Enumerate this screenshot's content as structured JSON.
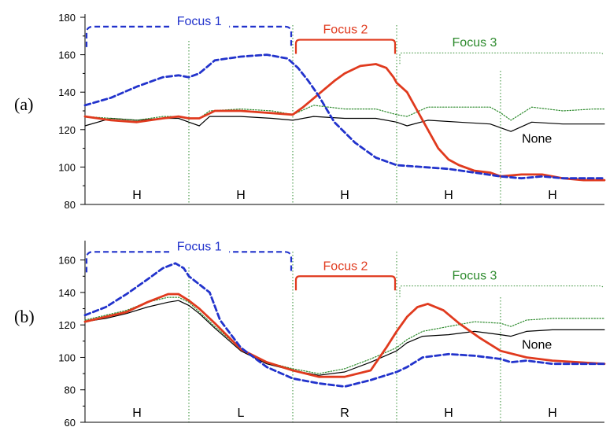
{
  "colors": {
    "focus1": "#2233cc",
    "focus2": "#e03a1e",
    "focus3": "#2e8b2e",
    "none": "#000000",
    "axis": "#000000"
  },
  "chart_data": [
    {
      "type": "line",
      "panel_label": "(a)",
      "ylim": [
        80,
        180
      ],
      "yticks": [
        80,
        100,
        120,
        140,
        160,
        180
      ],
      "xlim": [
        0,
        5
      ],
      "segment_labels": [
        "H",
        "H",
        "H",
        "H",
        "H"
      ],
      "focus_labels": [
        "Focus 1",
        "Focus 2",
        "Focus 3"
      ],
      "focus_values": [
        175,
        168,
        161
      ],
      "none_label": "None",
      "series": [
        {
          "key": "none",
          "style": "solid-thin",
          "x": [
            0,
            0.25,
            0.5,
            0.75,
            0.9,
            1.0,
            1.1,
            1.2,
            1.5,
            1.8,
            2.0,
            2.2,
            2.5,
            2.8,
            3.0,
            3.1,
            3.3,
            3.6,
            3.9,
            4.0,
            4.1,
            4.3,
            4.6,
            4.9,
            5.0
          ],
          "values": [
            122,
            126,
            125,
            126,
            126,
            124,
            122,
            127,
            127,
            126,
            125,
            127,
            126,
            126,
            124,
            122,
            125,
            124,
            123,
            121,
            119,
            124,
            123,
            123,
            123
          ]
        },
        {
          "key": "focus3",
          "style": "dotted",
          "x": [
            0,
            0.25,
            0.5,
            0.75,
            0.9,
            1.0,
            1.1,
            1.2,
            1.5,
            1.8,
            2.0,
            2.2,
            2.5,
            2.8,
            3.0,
            3.1,
            3.3,
            3.6,
            3.9,
            4.0,
            4.1,
            4.3,
            4.6,
            4.9,
            5.0
          ],
          "values": [
            127,
            126,
            125,
            127,
            127,
            126,
            126,
            130,
            131,
            130,
            128,
            133,
            131,
            131,
            128,
            127,
            132,
            132,
            132,
            129,
            125,
            132,
            130,
            131,
            131
          ]
        },
        {
          "key": "focus2",
          "style": "solid-thick",
          "x": [
            0,
            0.25,
            0.5,
            0.75,
            0.9,
            1.0,
            1.1,
            1.25,
            1.5,
            1.75,
            2.0,
            2.1,
            2.25,
            2.4,
            2.5,
            2.65,
            2.8,
            2.9,
            2.97,
            3.0,
            3.1,
            3.2,
            3.3,
            3.4,
            3.5,
            3.6,
            3.75,
            3.9,
            4.0,
            4.2,
            4.4,
            4.6,
            4.8,
            5.0
          ],
          "values": [
            127,
            125,
            124,
            126,
            127,
            126,
            126,
            130,
            130,
            129,
            128,
            132,
            139,
            146,
            150,
            154,
            155,
            153,
            148,
            145,
            140,
            130,
            120,
            110,
            104,
            101,
            98,
            97,
            95,
            96,
            96,
            94,
            93,
            93
          ]
        },
        {
          "key": "focus1",
          "style": "dashed",
          "x": [
            0,
            0.25,
            0.5,
            0.75,
            0.9,
            1.0,
            1.1,
            1.25,
            1.5,
            1.75,
            1.95,
            2.05,
            2.15,
            2.25,
            2.4,
            2.6,
            2.8,
            3.0,
            3.25,
            3.5,
            3.75,
            4.0,
            4.2,
            4.4,
            4.6,
            4.8,
            5.0
          ],
          "values": [
            133,
            137,
            143,
            148,
            149,
            148,
            150,
            157,
            159,
            160,
            158,
            153,
            146,
            138,
            124,
            113,
            105,
            101,
            100,
            99,
            97,
            95,
            94,
            95,
            94,
            94,
            94
          ]
        }
      ]
    },
    {
      "type": "line",
      "panel_label": "(b)",
      "ylim": [
        60,
        170
      ],
      "yticks": [
        60,
        80,
        100,
        120,
        140,
        160
      ],
      "xlim": [
        0,
        5
      ],
      "segment_labels": [
        "H",
        "L",
        "R",
        "H",
        "H"
      ],
      "focus_labels": [
        "Focus 1",
        "Focus 2",
        "Focus 3"
      ],
      "focus_values": [
        165,
        150,
        144
      ],
      "none_label": "None",
      "series": [
        {
          "key": "none",
          "style": "solid-thin",
          "x": [
            0,
            0.2,
            0.4,
            0.6,
            0.8,
            0.9,
            1.0,
            1.1,
            1.25,
            1.5,
            1.75,
            2.0,
            2.25,
            2.5,
            2.75,
            3.0,
            3.1,
            3.25,
            3.5,
            3.75,
            4.0,
            4.1,
            4.25,
            4.5,
            4.75,
            5.0
          ],
          "values": [
            122,
            124,
            127,
            131,
            134,
            135,
            132,
            127,
            118,
            104,
            96,
            92,
            89,
            91,
            97,
            104,
            109,
            113,
            114,
            116,
            114,
            113,
            116,
            117,
            117,
            117
          ]
        },
        {
          "key": "focus3",
          "style": "dotted",
          "x": [
            0,
            0.2,
            0.4,
            0.6,
            0.8,
            0.9,
            1.0,
            1.1,
            1.25,
            1.5,
            1.75,
            2.0,
            2.25,
            2.5,
            2.75,
            3.0,
            3.1,
            3.25,
            3.5,
            3.75,
            4.0,
            4.1,
            4.25,
            4.5,
            4.75,
            5.0
          ],
          "values": [
            123,
            126,
            129,
            134,
            137,
            137,
            134,
            128,
            119,
            105,
            97,
            93,
            90,
            93,
            99,
            106,
            111,
            116,
            119,
            122,
            121,
            119,
            123,
            124,
            124,
            124
          ]
        },
        {
          "key": "focus2",
          "style": "solid-thick",
          "x": [
            0,
            0.2,
            0.4,
            0.6,
            0.8,
            0.9,
            1.0,
            1.1,
            1.25,
            1.5,
            1.75,
            2.0,
            2.25,
            2.5,
            2.75,
            2.9,
            3.0,
            3.1,
            3.2,
            3.3,
            3.45,
            3.6,
            3.8,
            4.0,
            4.25,
            4.5,
            4.75,
            5.0
          ],
          "values": [
            122,
            125,
            128,
            134,
            139,
            139,
            135,
            130,
            121,
            105,
            97,
            92,
            88,
            88,
            92,
            106,
            116,
            125,
            131,
            133,
            129,
            121,
            112,
            104,
            100,
            98,
            97,
            96
          ]
        },
        {
          "key": "focus1",
          "style": "dashed",
          "x": [
            0,
            0.2,
            0.4,
            0.6,
            0.75,
            0.87,
            0.95,
            1.0,
            1.1,
            1.2,
            1.3,
            1.5,
            1.75,
            2.0,
            2.25,
            2.5,
            2.75,
            3.0,
            3.1,
            3.25,
            3.5,
            3.75,
            4.0,
            4.1,
            4.25,
            4.5,
            4.75,
            5.0
          ],
          "values": [
            126,
            131,
            139,
            148,
            155,
            158,
            155,
            150,
            145,
            140,
            123,
            106,
            94,
            87,
            84,
            82,
            86,
            91,
            94,
            100,
            102,
            101,
            99,
            97,
            98,
            96,
            96,
            96
          ]
        }
      ]
    }
  ]
}
